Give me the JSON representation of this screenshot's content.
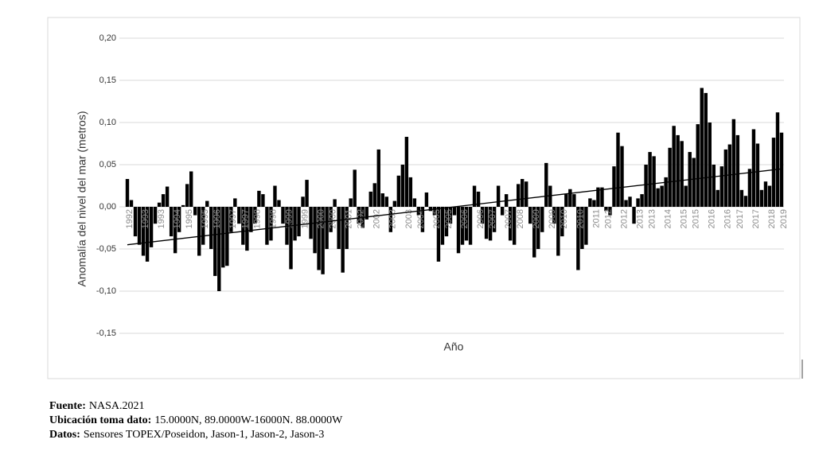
{
  "chart_data": {
    "type": "bar",
    "y_label": "Anomalía del nivel del mar (metros)",
    "x_label": "Año",
    "color": "#000000",
    "grid": true,
    "ylim": [
      -0.15,
      0.2
    ],
    "yticks": [
      {
        "value": -0.15,
        "label": "-0,15"
      },
      {
        "value": -0.1,
        "label": "-0,10"
      },
      {
        "value": -0.05,
        "label": "-0,05"
      },
      {
        "value": 0,
        "label": "0,00"
      },
      {
        "value": 0.05,
        "label": "0,05"
      },
      {
        "value": 0.1,
        "label": "0,10"
      },
      {
        "value": 0.15,
        "label": "0,15"
      },
      {
        "value": 0.2,
        "label": "0,20"
      }
    ],
    "trendline": {
      "start": -0.045,
      "end": 0.045
    },
    "categories": [
      "1992",
      null,
      null,
      null,
      "1993",
      null,
      null,
      null,
      "1993",
      null,
      null,
      null,
      "1994",
      null,
      null,
      "1995",
      null,
      null,
      null,
      "1995",
      null,
      null,
      "1996",
      null,
      null,
      null,
      "1997",
      null,
      null,
      "1997",
      null,
      null,
      "1998",
      null,
      null,
      null,
      "1998",
      null,
      null,
      null,
      "1999",
      null,
      null,
      null,
      "1999",
      null,
      null,
      null,
      "2000",
      null,
      null,
      "2000",
      null,
      null,
      null,
      "2001",
      null,
      null,
      "2002",
      null,
      null,
      null,
      "2002",
      null,
      null,
      null,
      "2003",
      null,
      null,
      null,
      "2003",
      null,
      null,
      "2004",
      null,
      null,
      null,
      "2005",
      null,
      null,
      "2005",
      null,
      null,
      null,
      "2006",
      null,
      null,
      null,
      "2006",
      null,
      null,
      "2007",
      null,
      null,
      null,
      "2007",
      null,
      null,
      "2008",
      null,
      null,
      null,
      "2009",
      null,
      null,
      null,
      "2009",
      null,
      null,
      "2010",
      null,
      null,
      null,
      "2010",
      null,
      null,
      null,
      "2011",
      null,
      null,
      "2012",
      null,
      null,
      null,
      "2012",
      null,
      null,
      null,
      "2013",
      null,
      null,
      "2013",
      null,
      null,
      null,
      "2014",
      null,
      null,
      null,
      "2015",
      null,
      null,
      "2015",
      null,
      null,
      null,
      "2016",
      null,
      null,
      null,
      "2016",
      null,
      null,
      "2017",
      null,
      null,
      null,
      "2017",
      null,
      null,
      null,
      "2018",
      null,
      null,
      "2019"
    ],
    "values": [
      0.033,
      0.008,
      -0.035,
      -0.045,
      -0.058,
      -0.065,
      -0.048,
      -0.02,
      0.005,
      0.015,
      0.024,
      -0.035,
      -0.055,
      -0.03,
      0.002,
      0.027,
      0.042,
      -0.01,
      -0.058,
      -0.045,
      0.007,
      -0.05,
      -0.082,
      -0.1,
      -0.072,
      -0.07,
      -0.03,
      0.01,
      -0.02,
      -0.045,
      -0.052,
      -0.03,
      -0.02,
      0.019,
      0.015,
      -0.045,
      -0.04,
      0.025,
      0.008,
      -0.02,
      -0.045,
      -0.074,
      -0.04,
      -0.035,
      0.012,
      0.032,
      -0.038,
      -0.055,
      -0.075,
      -0.08,
      -0.05,
      -0.03,
      0.009,
      -0.05,
      -0.078,
      -0.05,
      0.01,
      0.044,
      -0.02,
      -0.025,
      -0.015,
      0.018,
      0.028,
      0.068,
      0.016,
      0.012,
      -0.03,
      0.007,
      0.037,
      0.05,
      0.083,
      0.035,
      0.01,
      -0.01,
      -0.03,
      0.017,
      -0.005,
      -0.01,
      -0.065,
      -0.045,
      -0.035,
      -0.02,
      -0.01,
      -0.055,
      -0.045,
      -0.04,
      -0.045,
      0.025,
      0.018,
      -0.02,
      -0.038,
      -0.04,
      -0.03,
      0.025,
      -0.01,
      0.015,
      -0.04,
      -0.045,
      0.027,
      0.033,
      0.03,
      -0.02,
      -0.06,
      -0.05,
      -0.03,
      0.052,
      0.025,
      -0.02,
      -0.058,
      -0.035,
      0.015,
      0.021,
      0.015,
      -0.075,
      -0.05,
      -0.045,
      0.01,
      0.008,
      0.023,
      0.023,
      -0.005,
      -0.01,
      0.048,
      0.088,
      0.072,
      0.008,
      0.012,
      -0.02,
      0.01,
      0.015,
      0.05,
      0.065,
      0.06,
      0.022,
      0.025,
      0.035,
      0.07,
      0.096,
      0.085,
      0.078,
      0.025,
      0.065,
      0.058,
      0.098,
      0.141,
      0.135,
      0.1,
      0.05,
      0.02,
      0.048,
      0.068,
      0.074,
      0.104,
      0.085,
      0.02,
      0.013,
      0.045,
      0.092,
      0.075,
      0.02,
      0.03,
      0.025,
      0.082,
      0.112,
      0.088
    ]
  },
  "footer": [
    {
      "label": "Fuente:",
      "text": "NASA.2021"
    },
    {
      "label": "Ubicación toma dato:",
      "text": "15.0000N, 89.0000W-16000N. 88.0000W"
    },
    {
      "label": "Datos:",
      "text": "Sensores TOPEX/Poseidon, Jason-1, Jason-2, Jason-3"
    }
  ]
}
